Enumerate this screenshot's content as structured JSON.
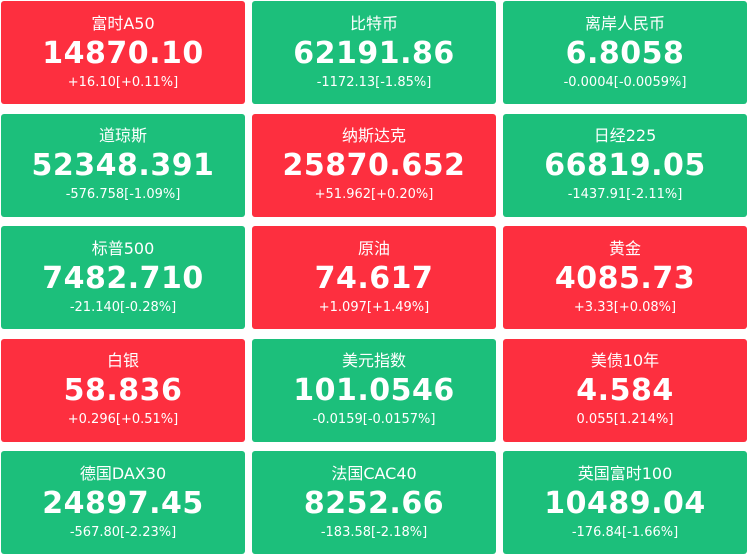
{
  "tiles": [
    {
      "name": "富时A50",
      "price": "14870.10",
      "change": "+16.10[+0.11%]",
      "color": "#fd2f3f"
    },
    {
      "name": "比特币",
      "price": "62191.86",
      "change": "-1172.13[-1.85%]",
      "color": "#1cbf7b"
    },
    {
      "name": "离岸人民币",
      "price": "6.8058",
      "change": "-0.0004[-0.0059%]",
      "color": "#1cbf7b"
    },
    {
      "name": "道琼斯",
      "price": "52348.391",
      "change": "-576.758[-1.09%]",
      "color": "#1cbf7b"
    },
    {
      "name": "纳斯达克",
      "price": "25870.652",
      "change": "+51.962[+0.20%]",
      "color": "#fd2f3f"
    },
    {
      "name": "日经225",
      "price": "66819.05",
      "change": "-1437.91[-2.11%]",
      "color": "#1cbf7b"
    },
    {
      "name": "标普500",
      "price": "7482.710",
      "change": "-21.140[-0.28%]",
      "color": "#1cbf7b"
    },
    {
      "name": "原油",
      "price": "74.617",
      "change": "+1.097[+1.49%]",
      "color": "#fd2f3f"
    },
    {
      "name": "黄金",
      "price": "4085.73",
      "change": "+3.33[+0.08%]",
      "color": "#fd2f3f"
    },
    {
      "name": "白银",
      "price": "58.836",
      "change": "+0.296[+0.51%]",
      "color": "#fd2f3f"
    },
    {
      "name": "美元指数",
      "price": "101.0546",
      "change": "-0.0159[-0.0157%]",
      "color": "#1cbf7b"
    },
    {
      "name": "美债10年",
      "price": "4.584",
      "change": "0.055[1.214%]",
      "color": "#fd2f3f"
    },
    {
      "name": "德国DAX30",
      "price": "24897.45",
      "change": "-567.80[-2.23%]",
      "color": "#1cbf7b"
    },
    {
      "name": "法国CAC40",
      "price": "8252.66",
      "change": "-183.58[-2.18%]",
      "color": "#1cbf7b"
    },
    {
      "name": "英国富时100",
      "price": "10489.04",
      "change": "-176.84[-1.66%]",
      "color": "#1cbf7b"
    }
  ]
}
